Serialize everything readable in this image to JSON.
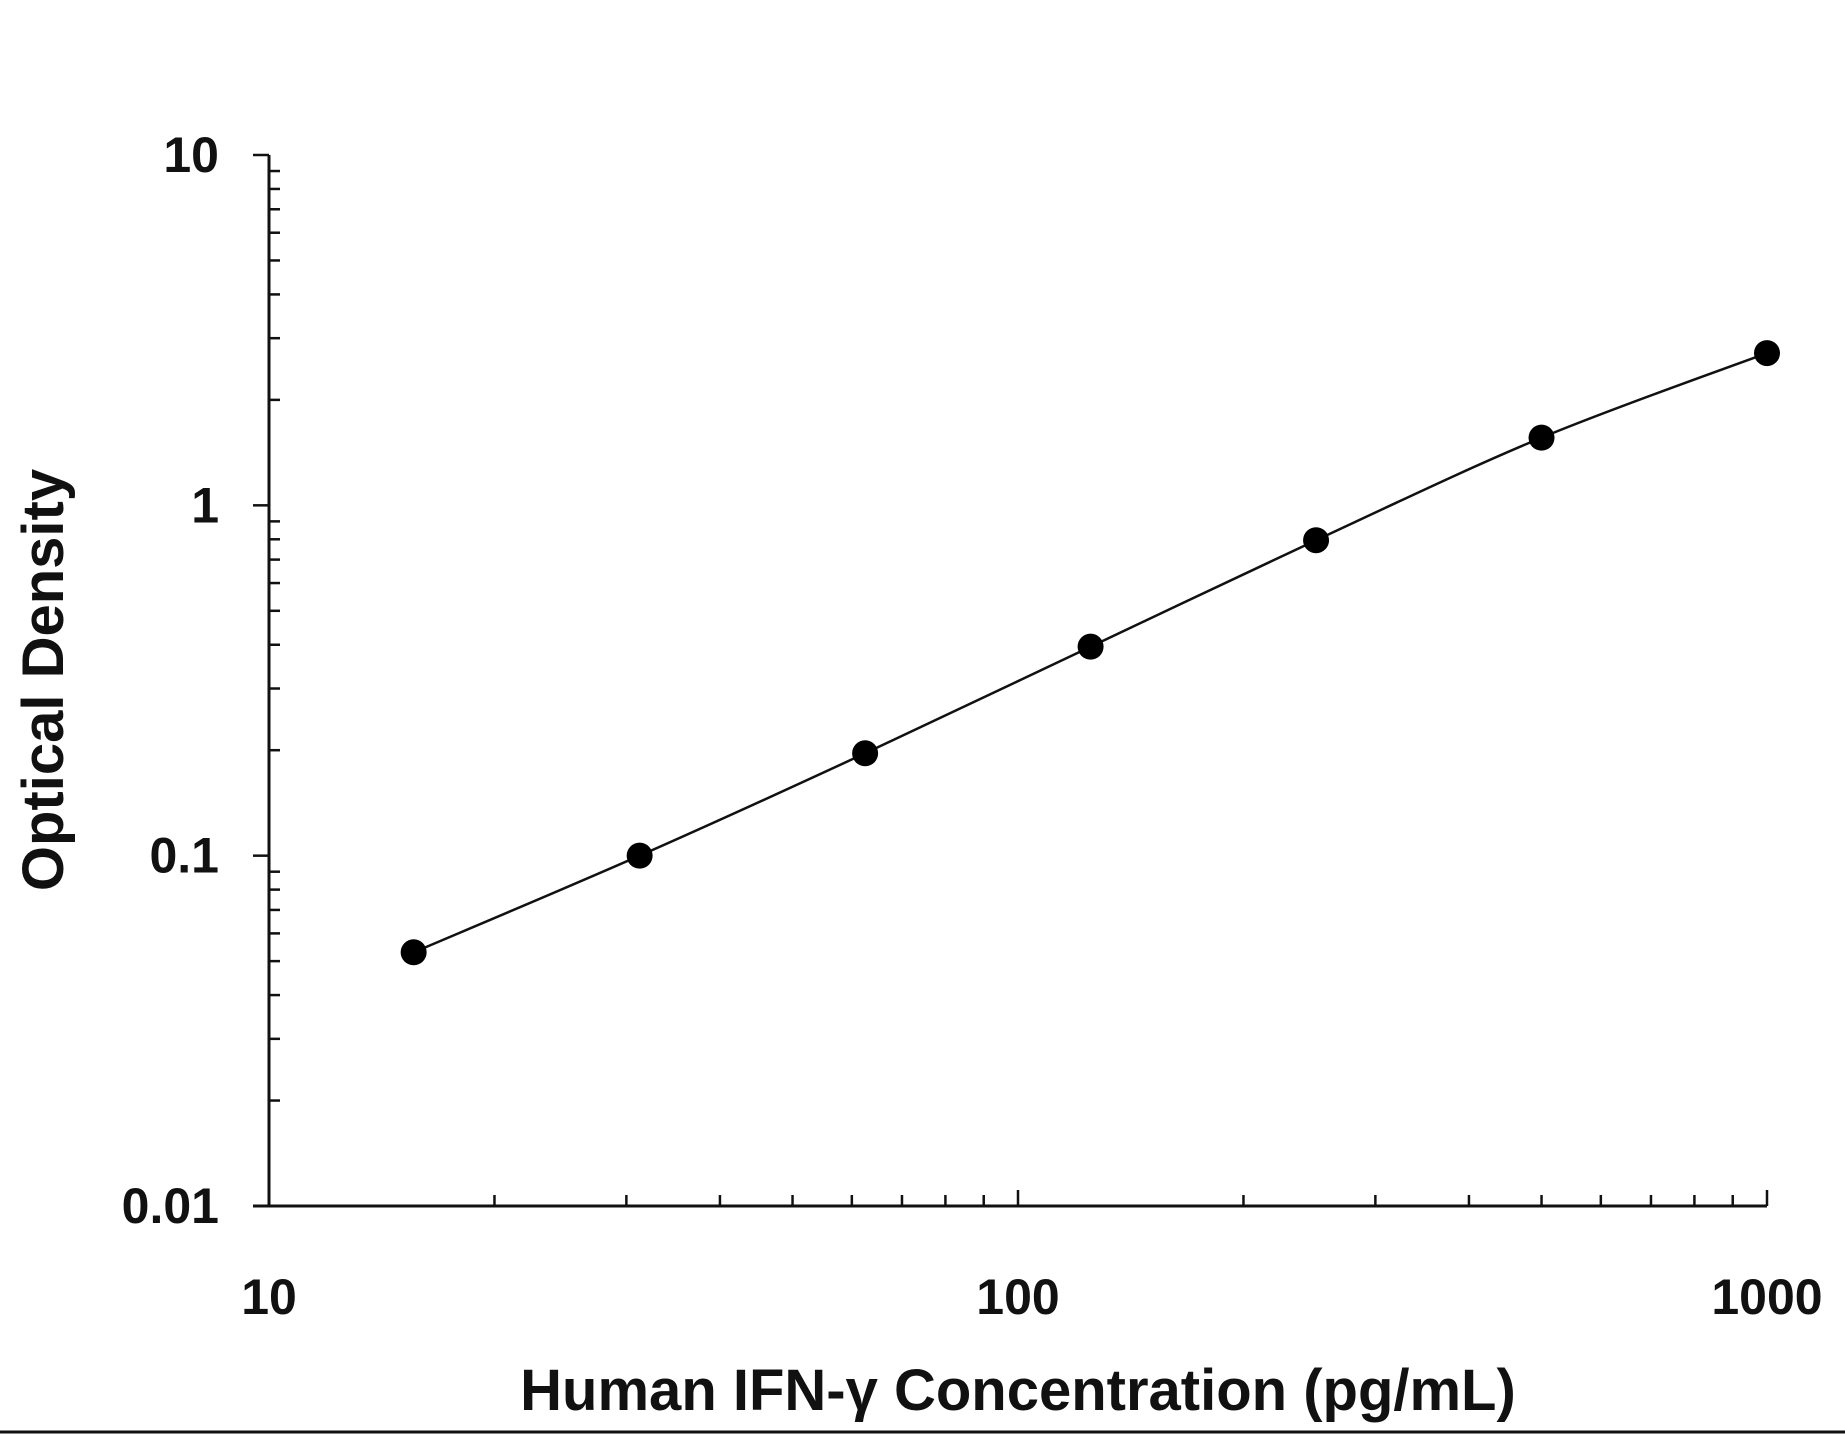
{
  "chart_data": {
    "type": "scatter",
    "title": "",
    "xlabel": "Human IFN-γ Concentration (pg/mL)",
    "ylabel": "Optical Density",
    "xscale": "log",
    "yscale": "log",
    "xlim": [
      10,
      1000
    ],
    "ylim": [
      0.01,
      10
    ],
    "x_tick_labels": [
      "10",
      "100",
      "1000"
    ],
    "x_tick_values": [
      10,
      100,
      1000
    ],
    "y_tick_labels": [
      "0.01",
      "0.1",
      "1",
      "10"
    ],
    "y_tick_values": [
      0.01,
      0.1,
      1,
      10
    ],
    "grid": false,
    "legend": "none",
    "fit_curve": true,
    "colors": {
      "points": "#000000",
      "line": "#111111",
      "axes": "#111111"
    },
    "series": [
      {
        "x": [
          15.6,
          31.25,
          62.5,
          125,
          250,
          500,
          1000
        ],
        "y": [
          0.053,
          0.1,
          0.196,
          0.395,
          0.795,
          1.56,
          2.72
        ]
      }
    ]
  }
}
